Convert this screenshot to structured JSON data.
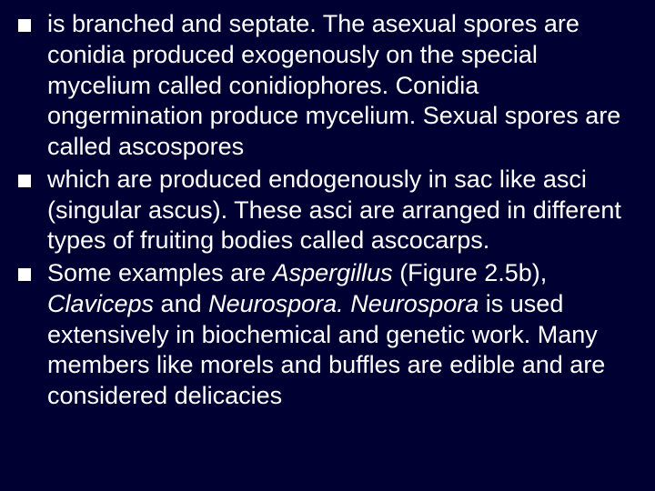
{
  "slide": {
    "background_color": "#000033",
    "text_color": "#ffffff",
    "bullet_color": "#ffffff",
    "font_size": 27,
    "bullets": [
      {
        "segments": [
          {
            "text": "is branched and septate. The asexual spores are conidia produced exogenously on the special mycelium called conidiophores. Conidia ongermination produce mycelium. Sexual spores are called ascospores",
            "italic": false
          }
        ]
      },
      {
        "segments": [
          {
            "text": "which are produced endogenously in sac like asci (singular ascus). These asci are arranged in different types of fruiting bodies called ascocarps.",
            "italic": false
          }
        ]
      },
      {
        "segments": [
          {
            "text": "Some examples are ",
            "italic": false
          },
          {
            "text": "Aspergillus ",
            "italic": true
          },
          {
            "text": "(Figure 2.5b), ",
            "italic": false
          },
          {
            "text": "Claviceps ",
            "italic": true
          },
          {
            "text": "and ",
            "italic": false
          },
          {
            "text": "Neurospora. Neurospora ",
            "italic": true
          },
          {
            "text": "is used extensively in biochemical and genetic work. Many members like morels and buffles are edible and are considered delicacies",
            "italic": false
          }
        ]
      }
    ]
  }
}
